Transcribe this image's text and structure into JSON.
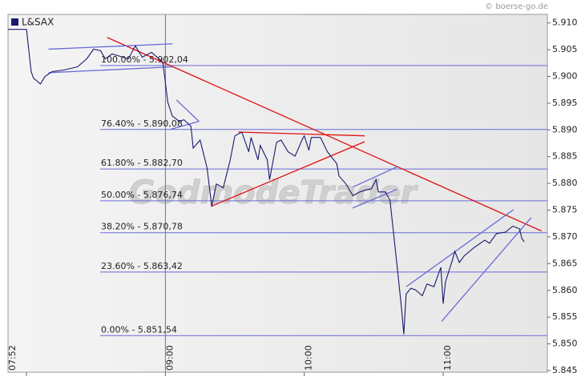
{
  "chart_data": {
    "type": "line",
    "source": "© boerse-go.de",
    "watermark": "GodmodeTrader",
    "series": [
      {
        "name": "L&SAX",
        "color": "#1a1a6e",
        "x": [
          472,
          480,
          482,
          483,
          486,
          488,
          491,
          496,
          502,
          506,
          509,
          512,
          514,
          517,
          524,
          527,
          530,
          534,
          538,
          539,
          541,
          543,
          546,
          548,
          551,
          552,
          555,
          558,
          560,
          562,
          565,
          568,
          570,
          573,
          576,
          577,
          580,
          581,
          584,
          585,
          588,
          590,
          593,
          596,
          599,
          600,
          602,
          603,
          607,
          610,
          614,
          615,
          618,
          621,
          624,
          626,
          629,
          631,
          632,
          635,
          637,
          640,
          642,
          643,
          644,
          646,
          648,
          651,
          653,
          656,
          659,
          660,
          661,
          664,
          665,
          667,
          669,
          673,
          678,
          680,
          683,
          687,
          690,
          693,
          694,
          695
        ],
        "values": [
          5.9088,
          5.9088,
          5.9009,
          5.8997,
          5.8986,
          5.9,
          5.9009,
          5.9012,
          5.9018,
          5.9033,
          5.9051,
          5.9048,
          5.9033,
          5.9042,
          5.9033,
          5.9057,
          5.9036,
          5.9045,
          5.903,
          5.9024,
          5.8952,
          5.8926,
          5.8916,
          5.8919,
          5.8907,
          5.8866,
          5.8881,
          5.8829,
          5.8757,
          5.8799,
          5.8792,
          5.8844,
          5.8889,
          5.8896,
          5.8859,
          5.8886,
          5.8844,
          5.8871,
          5.8844,
          5.8807,
          5.8877,
          5.8881,
          5.8859,
          5.8851,
          5.8881,
          5.8889,
          5.8862,
          5.8886,
          5.8886,
          5.8859,
          5.8837,
          5.8814,
          5.8799,
          5.8777,
          5.8784,
          5.8787,
          5.879,
          5.8807,
          5.8784,
          5.8784,
          5.8769,
          5.8649,
          5.8567,
          5.8518,
          5.8593,
          5.8604,
          5.8601,
          5.859,
          5.8612,
          5.8607,
          5.8643,
          5.8575,
          5.8616,
          5.8657,
          5.8673,
          5.8652,
          5.8664,
          5.8679,
          5.8694,
          5.8688,
          5.8706,
          5.8709,
          5.872,
          5.8715,
          5.8697,
          5.8691
        ]
      }
    ],
    "xlim": [
      472,
      705
    ],
    "xticks": [
      {
        "value": 472,
        "label": "07:52"
      },
      {
        "value": 540,
        "label": "09:00"
      },
      {
        "value": 600,
        "label": "10:00"
      },
      {
        "value": 660,
        "label": "11:00"
      }
    ],
    "session_line": 540,
    "ylim": [
      5.8447,
      5.9116
    ],
    "yticks": [
      {
        "value": 5.91,
        "label": "5.910"
      },
      5.905,
      {
        "value": 5.9,
        "label": "5.900"
      },
      5.895,
      {
        "value": 5.89,
        "label": "5.890"
      },
      5.885,
      {
        "value": 5.88,
        "label": "5.880"
      },
      5.875,
      {
        "value": 5.87,
        "label": "5.870"
      },
      5.865,
      {
        "value": 5.86,
        "label": "5.860"
      },
      5.855,
      {
        "value": 5.85,
        "label": "5.850"
      },
      5.845
    ],
    "fib_color": "#6a6ad8",
    "fib_levels": [
      {
        "label": "100.00% - 5.902,04",
        "value": 5.90204
      },
      {
        "label": "76.40% - 5.890,08",
        "value": 5.89008
      },
      {
        "label": "61.80% - 5.882,70",
        "value": 5.8827
      },
      {
        "label": "50.00% - 5.876,74",
        "value": 5.87674
      },
      {
        "label": "38.20% - 5.870,78",
        "value": 5.87078
      },
      {
        "label": "23.60% - 5.863,42",
        "value": 5.86342
      },
      {
        "label": "0.00% - 5.851,54",
        "value": 5.85154
      }
    ],
    "trendlines": [
      {
        "color": "#e01010",
        "x": [
          514.8,
          702.5
        ],
        "y": [
          5.9073,
          5.8711
        ]
      },
      {
        "color": "#e01010",
        "x": [
          571.5,
          626.1
        ],
        "y": [
          5.8896,
          5.8889
        ]
      },
      {
        "color": "#e01010",
        "x": [
          559.7,
          626.1
        ],
        "y": [
          5.8757,
          5.8878
        ]
      },
      {
        "color": "#6a6ad8",
        "x": [
          489.5,
          543.1
        ],
        "y": [
          5.9051,
          5.9061
        ]
      },
      {
        "color": "#6a6ad8",
        "x": [
          489.5,
          543.1
        ],
        "y": [
          5.9007,
          5.9018
        ]
      },
      {
        "color": "#6a6ad8",
        "x": [
          544.8,
          554.5
        ],
        "y": [
          5.8956,
          5.8916
        ]
      },
      {
        "color": "#6a6ad8",
        "x": [
          542.1,
          554.5
        ],
        "y": [
          5.8901,
          5.8916
        ]
      },
      {
        "color": "#6a6ad8",
        "x": [
          620.9,
          640.6
        ],
        "y": [
          5.8793,
          5.8832
        ]
      },
      {
        "color": "#6a6ad8",
        "x": [
          620.9,
          640.0
        ],
        "y": [
          5.8754,
          5.8789
        ]
      },
      {
        "color": "#6a6ad8",
        "x": [
          644.1,
          690.4
        ],
        "y": [
          5.8607,
          5.8751
        ]
      },
      {
        "color": "#6a6ad8",
        "x": [
          659.3,
          698.0
        ],
        "y": [
          5.8542,
          5.8736
        ]
      }
    ]
  }
}
